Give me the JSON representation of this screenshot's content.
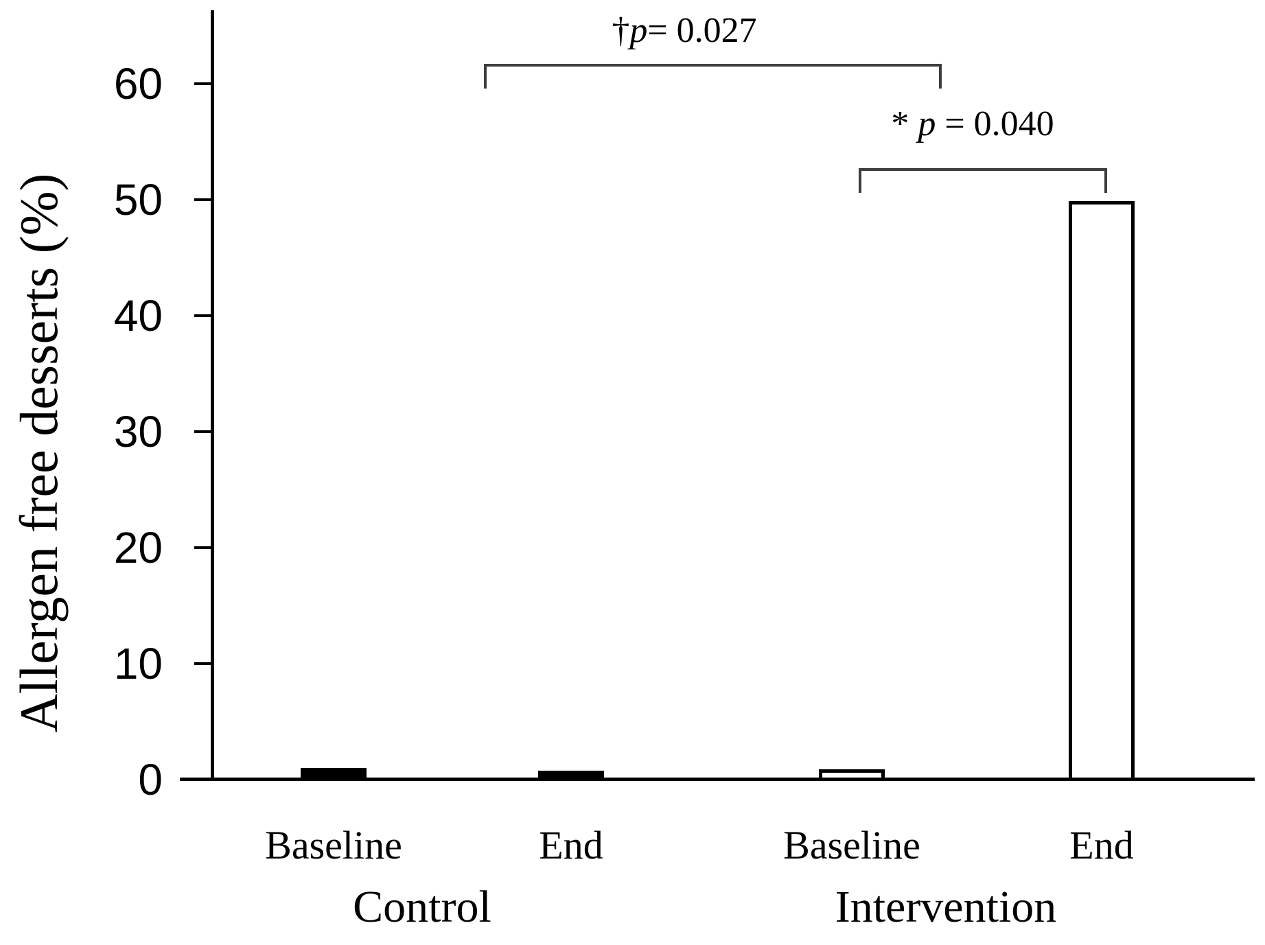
{
  "chart_data": {
    "type": "bar",
    "title": "",
    "ylabel": "Allergen free desserts (%)",
    "xlabel": "",
    "ylim": [
      0,
      67
    ],
    "yticks": [
      0,
      10,
      20,
      30,
      40,
      50,
      60
    ],
    "grid": false,
    "legend_position": "none",
    "axis_color": "#000000",
    "bar_edge_color": "#000000",
    "group_labels": [
      "Control",
      "Intervention"
    ],
    "series": [
      {
        "group": "Control",
        "category": "Baseline",
        "value": 1.1,
        "fill": "#000000"
      },
      {
        "group": "Control",
        "category": "End",
        "value": 0.9,
        "fill": "#000000"
      },
      {
        "group": "Intervention",
        "category": "Baseline",
        "value": 1.0,
        "fill": "#ffffff"
      },
      {
        "group": "Intervention",
        "category": "End",
        "value": 50.0,
        "fill": "#ffffff"
      }
    ],
    "annotations": [
      {
        "text": "†p= 0.027",
        "compare": [
          "Control End",
          "Intervention Baseline"
        ]
      },
      {
        "text": "* p = 0.040",
        "compare": [
          "Intervention Baseline",
          "Intervention End"
        ]
      }
    ]
  }
}
